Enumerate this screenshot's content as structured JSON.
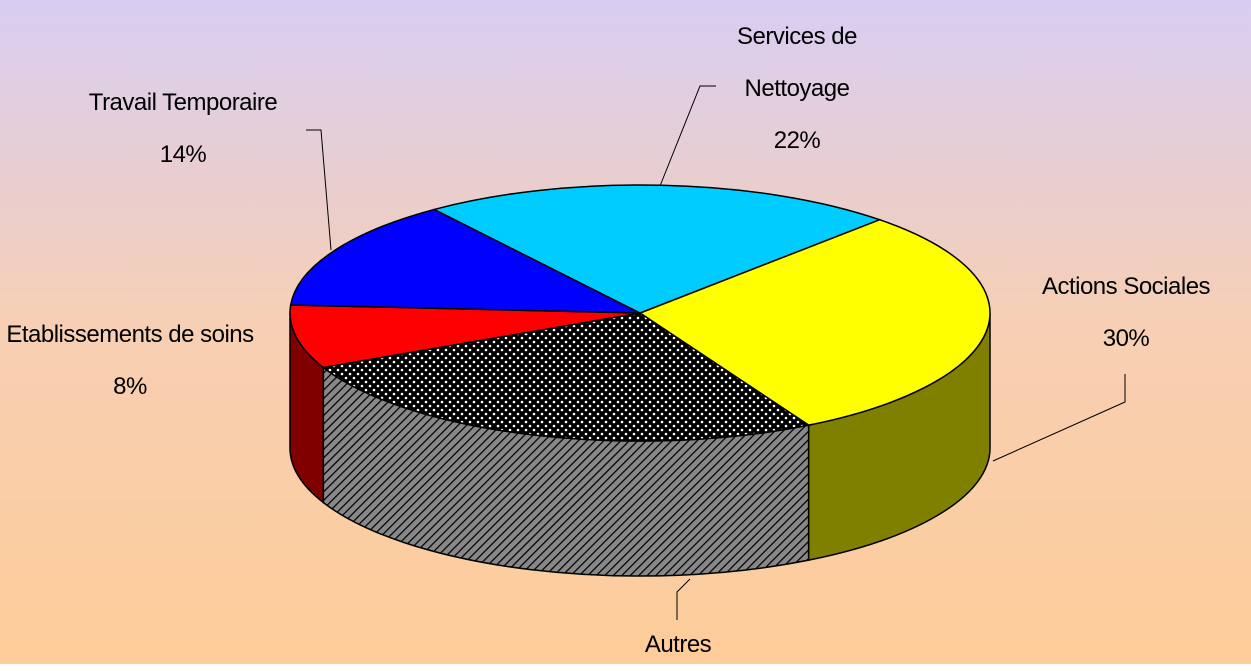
{
  "chart_data": {
    "type": "pie3d",
    "categories": [
      "Actions Sociales",
      "Autres",
      "Etablissements de soins",
      "Travail Temporaire",
      "Services de Nettoyage"
    ],
    "values": [
      30,
      26,
      8,
      14,
      22
    ],
    "value_labels": [
      "30%",
      null,
      "8%",
      "14%",
      "22%"
    ],
    "colors": [
      "#ffff00",
      "#000000",
      "#ff0000",
      "#0000ff",
      "#00ccff"
    ],
    "side_colors": [
      "#808000",
      "#707070",
      "#800000",
      "#000080",
      "#006680"
    ]
  }
}
